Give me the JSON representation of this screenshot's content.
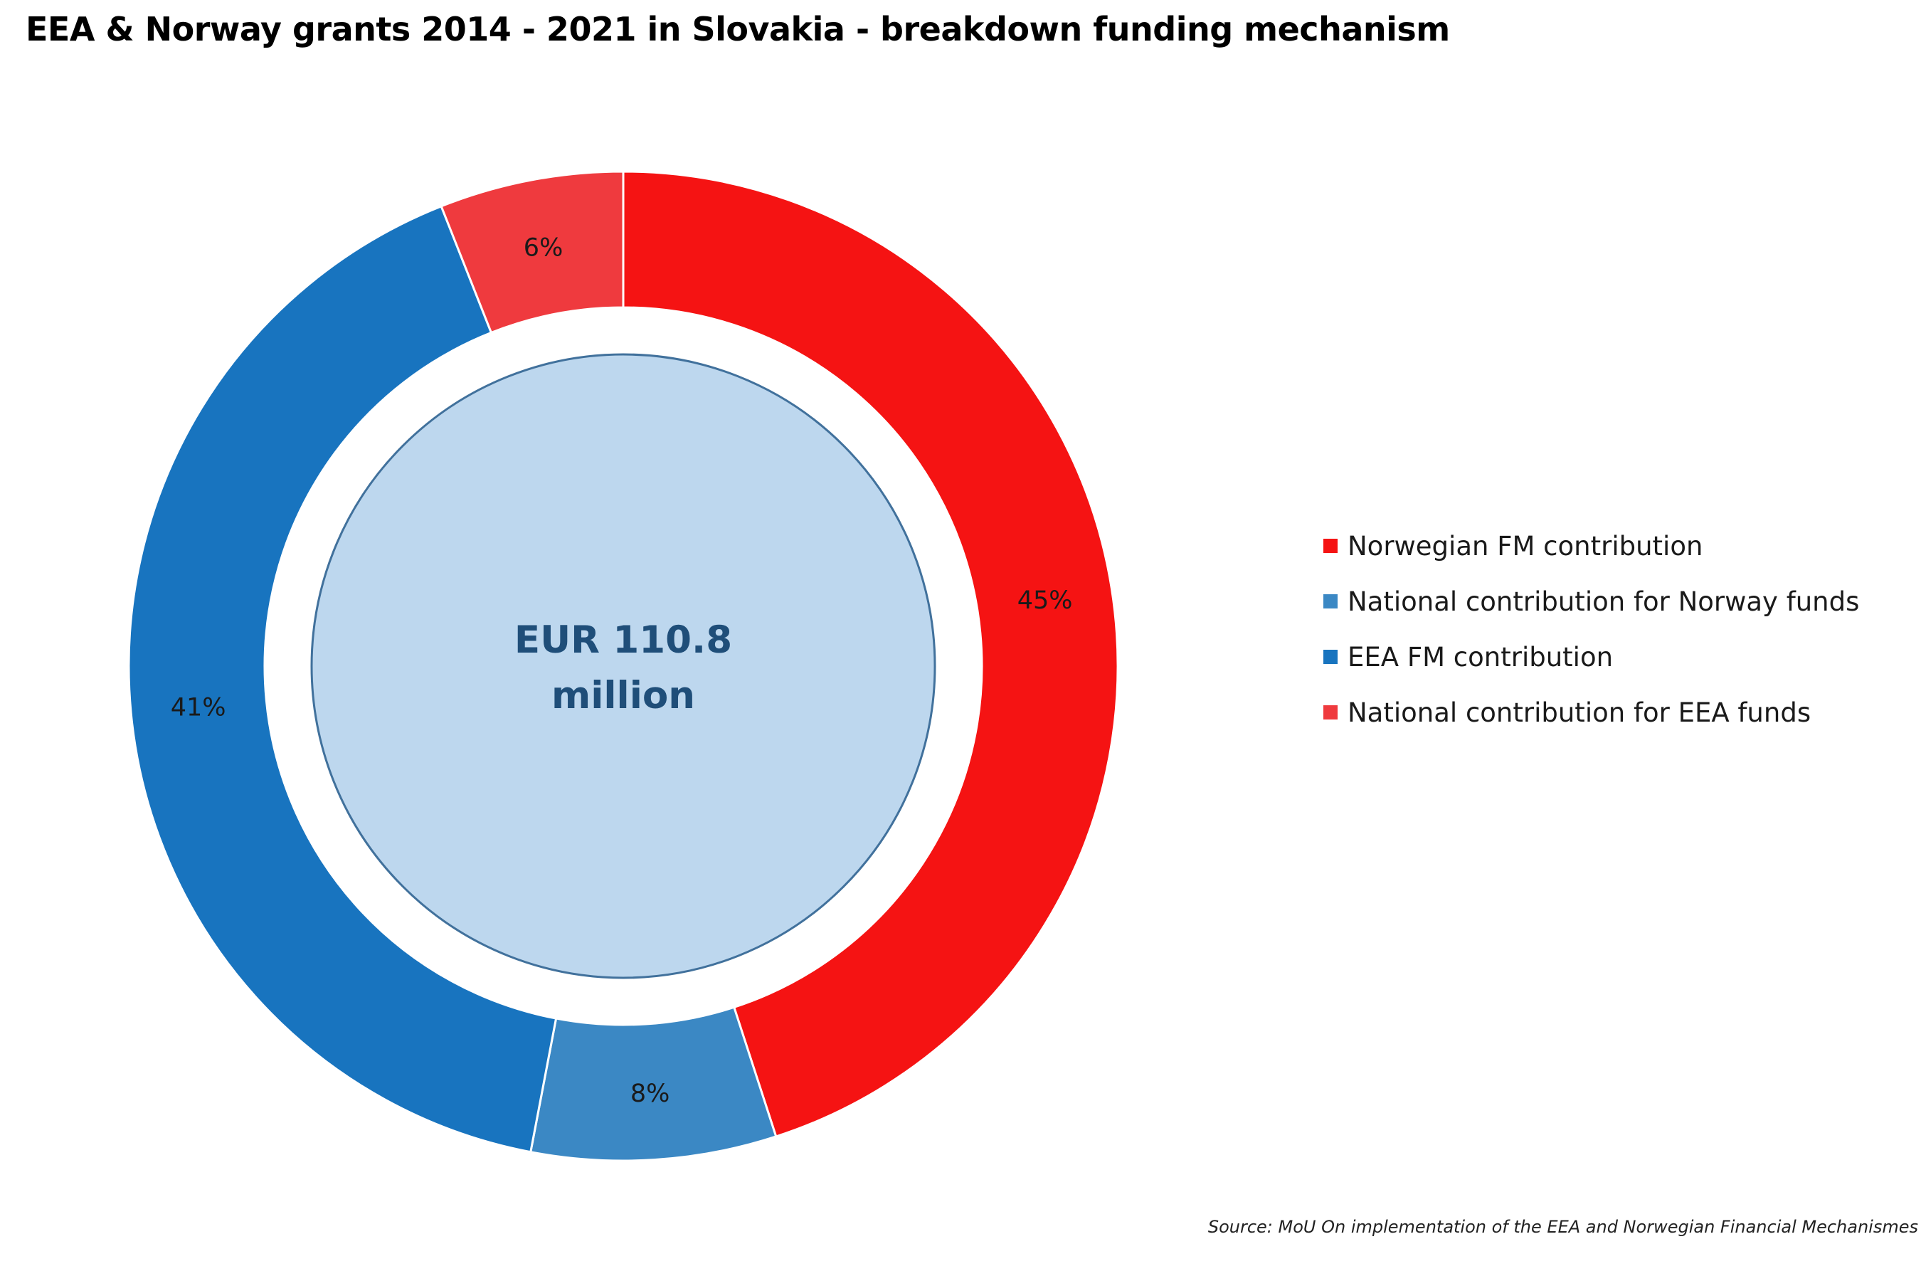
{
  "title": "EEA & Norway grants 2014 - 2021 in Slovakia - breakdown funding mechanism",
  "center_label": {
    "line1": "EUR 110.8",
    "line2": "million"
  },
  "source": "Source: MoU On implementation of the EEA and Norwegian Financial Mechanismes",
  "colors": {
    "norwegian_fm": "#f51313",
    "national_norway": "#3b88c4",
    "eea_fm": "#1874bf",
    "national_eea": "#ef3a3e",
    "center_fill": "#bdd7ee",
    "center_stroke": "#41719c",
    "center_text": "#1f4e79"
  },
  "chart_data": {
    "type": "pie",
    "style": "donut",
    "total_label": "EUR 110.8 million",
    "categories": [
      "Norwegian FM contribution",
      "National contribution for Norway funds",
      "EEA FM contribution",
      "National contribution for EEA funds"
    ],
    "values": [
      45,
      8,
      41,
      6
    ],
    "labels": [
      "45%",
      "8%",
      "41%",
      "6%"
    ],
    "colors": [
      "#f51313",
      "#3b88c4",
      "#1874bf",
      "#ef3a3e"
    ],
    "legend_position": "right"
  }
}
